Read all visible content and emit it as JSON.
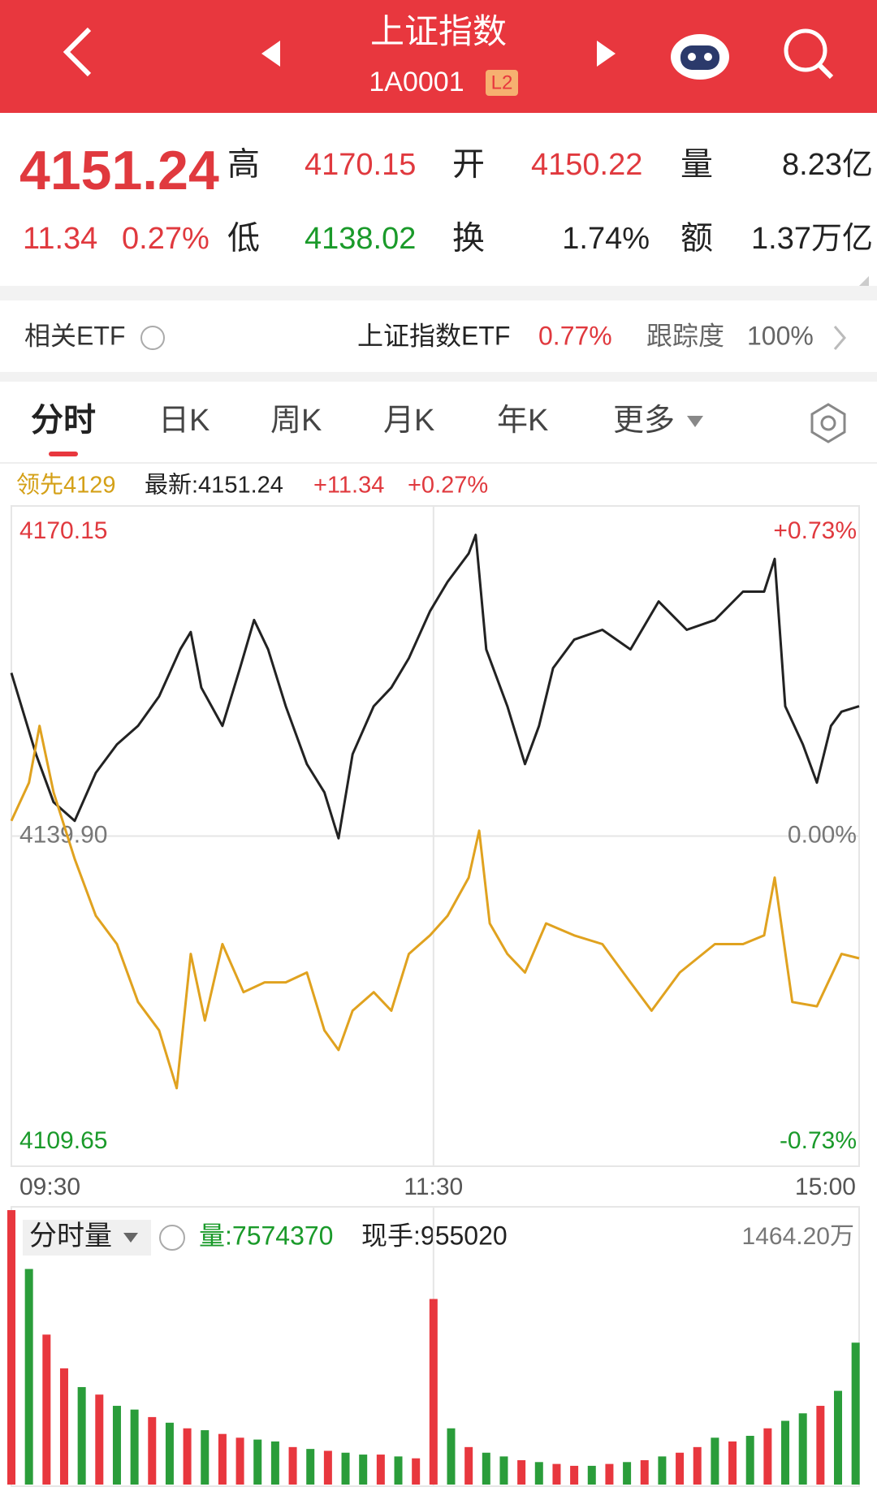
{
  "header": {
    "title": "上证指数",
    "code": "1A0001",
    "badge": "L2"
  },
  "quote": {
    "price": "4151.24",
    "change": "11.34",
    "change_pct": "0.27%",
    "items": [
      {
        "label": "高",
        "value": "4170.15"
      },
      {
        "label": "开",
        "value": "4150.22"
      },
      {
        "label": "量",
        "value": "8.23亿"
      },
      {
        "label": "低",
        "value": "4138.02"
      },
      {
        "label": "换",
        "value": "1.74%"
      },
      {
        "label": "额",
        "value": "1.37万亿"
      }
    ]
  },
  "etf": {
    "label": "相关ETF",
    "name": "上证指数ETF",
    "change": "0.77%",
    "tracking_label": "跟踪度",
    "tracking": "100%"
  },
  "tabs": [
    "分时",
    "日K",
    "周K",
    "月K",
    "年K",
    "更多"
  ],
  "info": {
    "lead": "领先4129",
    "latest": "最新:4151.24",
    "change": "+11.34",
    "change_pct": "+0.27%"
  },
  "chart_data": [
    {
      "type": "line",
      "xlim": [
        0,
        241
      ],
      "xticks": [
        {
          "value": 0,
          "label": "09:30"
        },
        {
          "value": 120,
          "label": "11:30"
        },
        {
          "value": 241,
          "label": "15:00"
        }
      ],
      "ylim": [
        4109.65,
        4170.15
      ],
      "yticks": [
        4170.15,
        {
          "value": 4139.9,
          "label": "4139.90"
        },
        4109.65
      ],
      "y2lim": [
        -0.73,
        0.73
      ],
      "y2ticks": [
        {
          "value": 0.73,
          "label": "+0.73%"
        },
        {
          "value": 0,
          "label": "0.00%"
        },
        {
          "value": -0.73,
          "label": "-0.73%"
        }
      ],
      "series": [
        {
          "color": "#222222",
          "x": [
            0,
            7,
            12,
            18,
            24,
            30,
            36,
            42,
            48,
            51,
            54,
            60,
            65,
            69,
            73,
            78,
            84,
            89,
            93,
            97,
            103,
            108,
            113,
            119,
            124,
            130,
            132,
            135,
            141,
            146,
            150,
            154,
            160,
            168,
            176,
            184,
            192,
            200,
            208,
            214,
            217,
            220,
            225,
            229,
            233,
            236,
            241
          ],
          "values": [
            4154.85,
            4147.4,
            4143.0,
            4141.3,
            4145.7,
            4148.3,
            4150.0,
            4152.7,
            4157.0,
            4158.6,
            4153.5,
            4150.0,
            4155.3,
            4159.7,
            4157.0,
            4151.8,
            4146.5,
            4143.9,
            4139.7,
            4147.4,
            4151.8,
            4153.5,
            4156.2,
            4160.5,
            4163.2,
            4165.8,
            4167.5,
            4157.0,
            4151.8,
            4146.5,
            4150.0,
            4155.3,
            4157.9,
            4158.8,
            4157.0,
            4161.4,
            4158.8,
            4159.7,
            4162.3,
            4162.3,
            4165.3,
            4151.8,
            4148.3,
            4144.8,
            4150.0,
            4151.3,
            4151.8
          ]
        },
        {
          "color": "#e0a21f",
          "x": [
            0,
            5,
            8,
            12,
            18,
            24,
            30,
            36,
            42,
            47,
            51,
            55,
            60,
            66,
            72,
            78,
            84,
            89,
            93,
            97,
            103,
            108,
            113,
            119,
            124,
            130,
            133,
            136,
            141,
            146,
            152,
            160,
            168,
            176,
            182,
            190,
            200,
            208,
            214,
            217,
            222,
            229,
            236,
            241
          ],
          "values": [
            4141.3,
            4144.8,
            4150.0,
            4143.9,
            4137.8,
            4132.6,
            4130.0,
            4124.7,
            4122.1,
            4116.8,
            4129.1,
            4123.0,
            4130.0,
            4125.6,
            4126.5,
            4126.5,
            4127.4,
            4122.1,
            4120.3,
            4123.9,
            4125.6,
            4123.9,
            4129.1,
            4130.8,
            4132.6,
            4136.1,
            4140.4,
            4131.9,
            4129.1,
            4127.4,
            4131.9,
            4130.8,
            4130.0,
            4126.5,
            4123.9,
            4127.4,
            4130.0,
            4130.0,
            4130.8,
            4136.1,
            4124.7,
            4124.3,
            4129.1,
            4128.7
          ]
        }
      ]
    },
    {
      "type": "bar",
      "title": "分时量",
      "volume_label": "量:7574370",
      "hand_label": "现手:955020",
      "ylim": [
        0,
        1464.2
      ],
      "yticks": [
        {
          "value": 1464.2,
          "label": "1464.20万"
        }
      ],
      "x": [
        0,
        5,
        10,
        15,
        20,
        25,
        30,
        35,
        40,
        45,
        50,
        55,
        60,
        65,
        70,
        75,
        80,
        85,
        90,
        95,
        100,
        105,
        110,
        115,
        120,
        125,
        130,
        135,
        140,
        145,
        150,
        155,
        160,
        165,
        170,
        175,
        180,
        185,
        190,
        195,
        200,
        205,
        210,
        215,
        220,
        225,
        230,
        235,
        240
      ],
      "values": [
        1464,
        1150,
        800,
        620,
        520,
        480,
        420,
        400,
        360,
        330,
        300,
        290,
        270,
        250,
        240,
        230,
        200,
        190,
        180,
        170,
        160,
        160,
        150,
        140,
        990,
        300,
        200,
        170,
        150,
        130,
        120,
        110,
        100,
        100,
        110,
        120,
        130,
        150,
        170,
        200,
        250,
        230,
        260,
        300,
        340,
        380,
        420,
        500,
        757
      ],
      "colors": [
        "#e8373e",
        "#2a9d3a",
        "#e8373e",
        "#e8373e",
        "#2a9d3a",
        "#e8373e",
        "#2a9d3a",
        "#2a9d3a",
        "#e8373e",
        "#2a9d3a",
        "#e8373e",
        "#2a9d3a",
        "#e8373e",
        "#e8373e",
        "#2a9d3a",
        "#2a9d3a",
        "#e8373e",
        "#2a9d3a",
        "#e8373e",
        "#2a9d3a",
        "#2a9d3a",
        "#e8373e",
        "#2a9d3a",
        "#e8373e",
        "#e8373e",
        "#2a9d3a",
        "#e8373e",
        "#2a9d3a",
        "#2a9d3a",
        "#e8373e",
        "#2a9d3a",
        "#e8373e",
        "#e8373e",
        "#2a9d3a",
        "#e8373e",
        "#2a9d3a",
        "#e8373e",
        "#2a9d3a",
        "#e8373e",
        "#e8373e",
        "#2a9d3a",
        "#e8373e",
        "#2a9d3a",
        "#e8373e",
        "#2a9d3a",
        "#2a9d3a",
        "#e8373e",
        "#2a9d3a",
        "#2a9d3a"
      ]
    }
  ]
}
